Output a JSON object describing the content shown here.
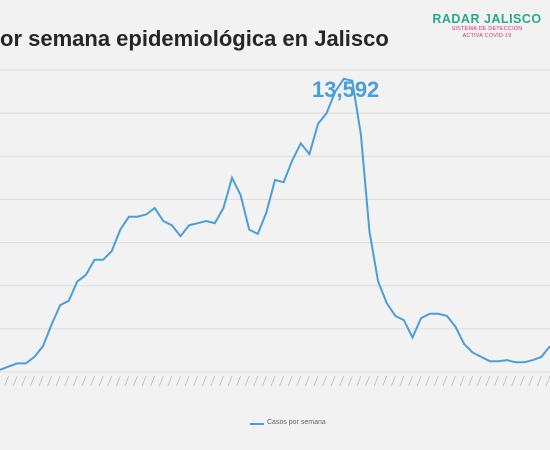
{
  "title": "or semana epidemiológica en Jalisco",
  "logo": {
    "main": "RADAR JALISCO",
    "sub1": "SISTEMA DE DETECCIÓN",
    "sub2": "ACTIVA COVID-19"
  },
  "peak_label": "13,592",
  "colors": {
    "line": "#4a9fd8",
    "grid": "#dcdcdc",
    "title": "#262626"
  },
  "chart_data": {
    "type": "line",
    "title": "",
    "ylim": [
      0,
      14000
    ],
    "grid": true,
    "legend": "bottom",
    "series": [
      {
        "name": "Casos por semana",
        "values": [
          100,
          250,
          400,
          400,
          700,
          1200,
          2200,
          3100,
          3300,
          4200,
          4500,
          5200,
          5200,
          5600,
          6600,
          7200,
          7200,
          7300,
          7600,
          7000,
          6800,
          6300,
          6800,
          6900,
          7000,
          6900,
          7600,
          9000,
          8200,
          6600,
          6400,
          7400,
          8900,
          8800,
          9800,
          10600,
          10100,
          11500,
          12000,
          13000,
          13592,
          13500,
          11000,
          6500,
          4200,
          3200,
          2600,
          2400,
          1600,
          2500,
          2700,
          2700,
          2600,
          2100,
          1300,
          900,
          700,
          500,
          500,
          550,
          450,
          450,
          550,
          700,
          1200
        ]
      }
    ]
  }
}
